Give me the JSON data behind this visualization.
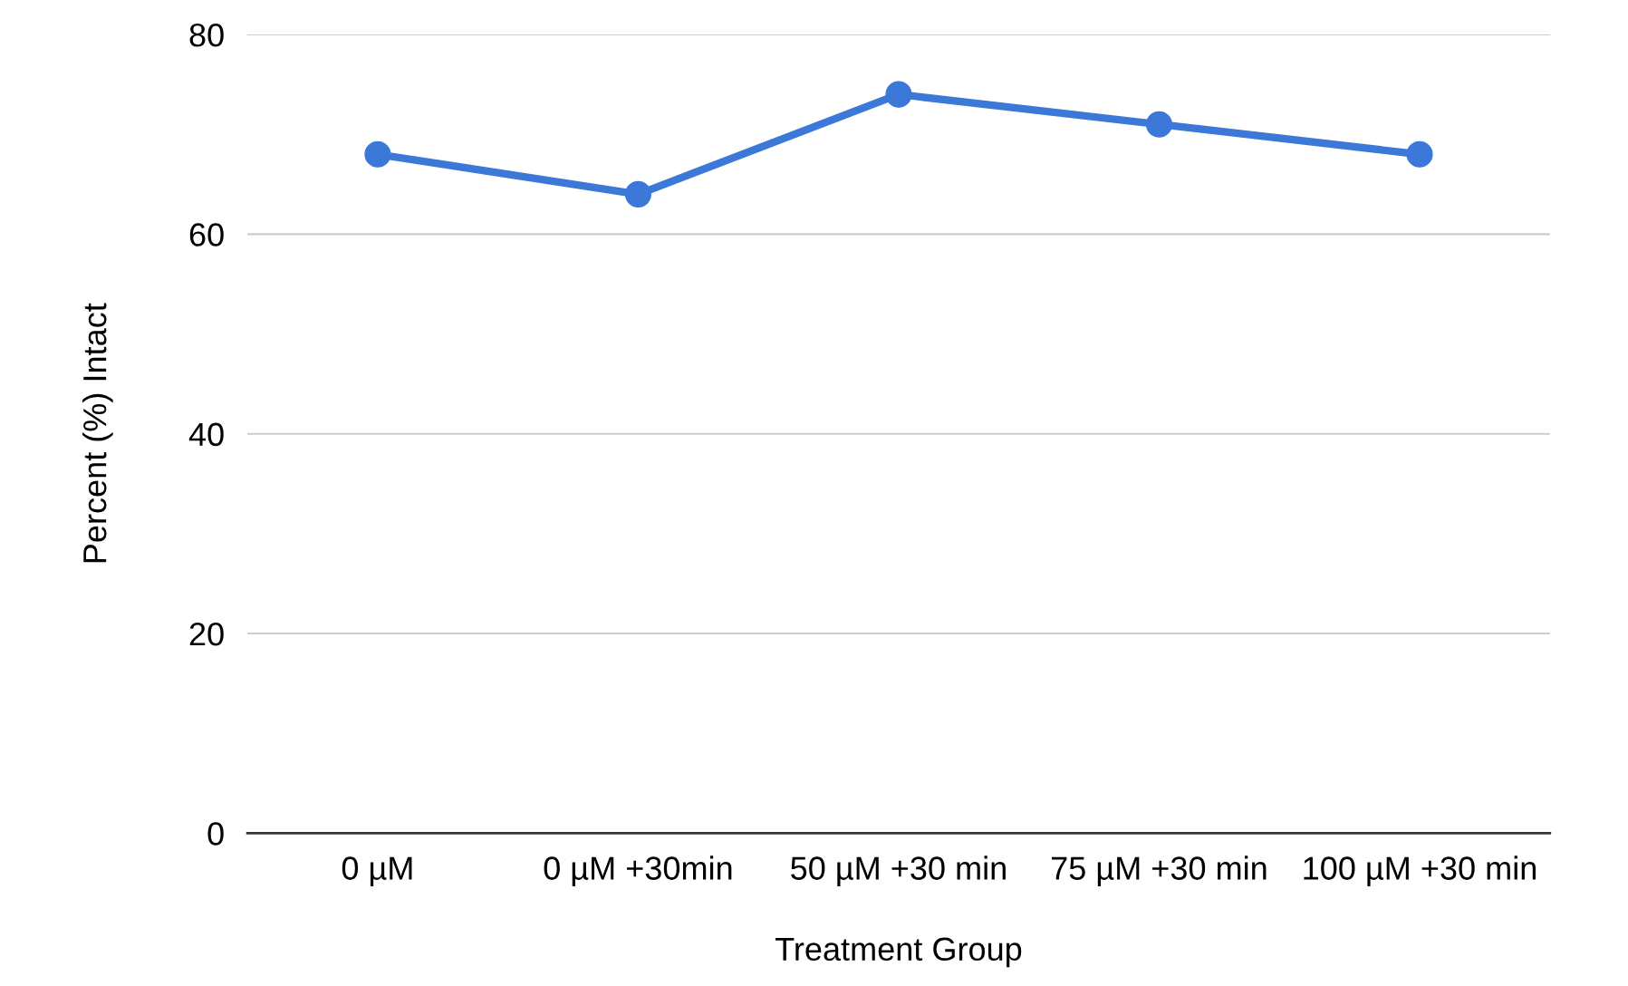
{
  "chart_data": {
    "type": "line",
    "xlabel": "Treatment Group",
    "ylabel": "Percent (%) Intact",
    "categories": [
      "0 µM",
      "0 µM +30min",
      "50 µM +30 min",
      "75 µM +30 min",
      "100 µM +30 min"
    ],
    "series": [
      {
        "color": "#3c78d8",
        "values": [
          68,
          64,
          74,
          71,
          68
        ]
      }
    ],
    "ylim": [
      0,
      80
    ],
    "yticks": [
      0,
      20,
      40,
      60,
      80
    ],
    "grid": "y",
    "marker": "circle",
    "line_style": "solid",
    "legend": false
  }
}
